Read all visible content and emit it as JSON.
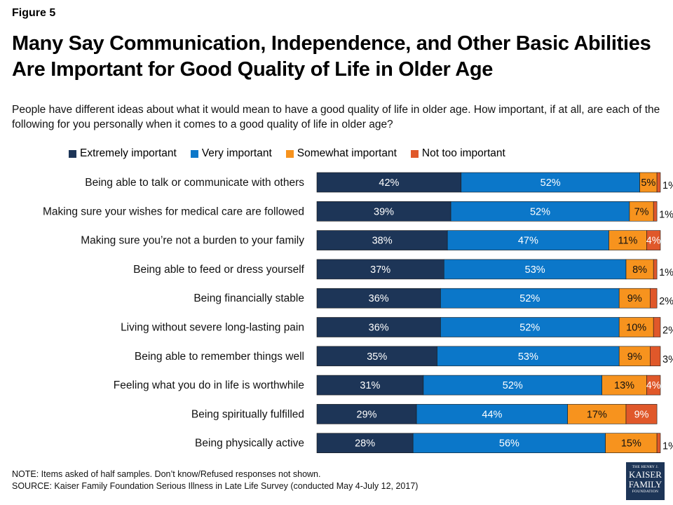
{
  "figure_label": "Figure 5",
  "title": "Many Say Communication, Independence, and Other Basic Abilities Are Important for Good Quality of Life in Older Age",
  "subtitle": "People have different ideas about what it would mean to have a good quality of life in older age. How important, if at all, are each of the following for you personally when it comes to a good quality of life in older age?",
  "note": "NOTE: Items asked of half samples. Don’t know/Refused responses not shown.",
  "source": "SOURCE: Kaiser Family Foundation Serious Illness in Late Life Survey (conducted May 4-July 12, 2017)",
  "logo": {
    "line1": "THE HENRY J.",
    "line2a": "KAISER",
    "line2b": "FAMILY",
    "line3": "FOUNDATION"
  },
  "colors": {
    "extremely": "#1d3557",
    "very": "#0b77c9",
    "somewhat": "#f7931e",
    "not_too": "#e0582a"
  },
  "chart_data": {
    "type": "bar",
    "orientation": "horizontal",
    "stacked": true,
    "unit": "%",
    "legend_position": "top",
    "categories": [
      "Being able to talk or communicate with others",
      "Making sure your wishes for medical care are followed",
      "Making sure you’re not a burden to your family",
      "Being able to feed or dress yourself",
      "Being financially stable",
      "Living without severe long-lasting pain",
      "Being able to remember things well",
      "Feeling what you do in life is worthwhile",
      "Being spiritually fulfilled",
      "Being physically active"
    ],
    "series": [
      {
        "name": "Extremely important",
        "color": "#1d3557",
        "values": [
          42,
          39,
          38,
          37,
          36,
          36,
          35,
          31,
          29,
          28
        ]
      },
      {
        "name": "Very important",
        "color": "#0b77c9",
        "values": [
          52,
          52,
          47,
          53,
          52,
          52,
          53,
          52,
          44,
          56
        ]
      },
      {
        "name": "Somewhat important",
        "color": "#f7931e",
        "values": [
          5,
          7,
          11,
          8,
          9,
          10,
          9,
          13,
          17,
          15
        ]
      },
      {
        "name": "Not too important",
        "color": "#e0582a",
        "values": [
          1,
          1,
          4,
          1,
          2,
          2,
          3,
          4,
          9,
          1
        ]
      }
    ]
  }
}
